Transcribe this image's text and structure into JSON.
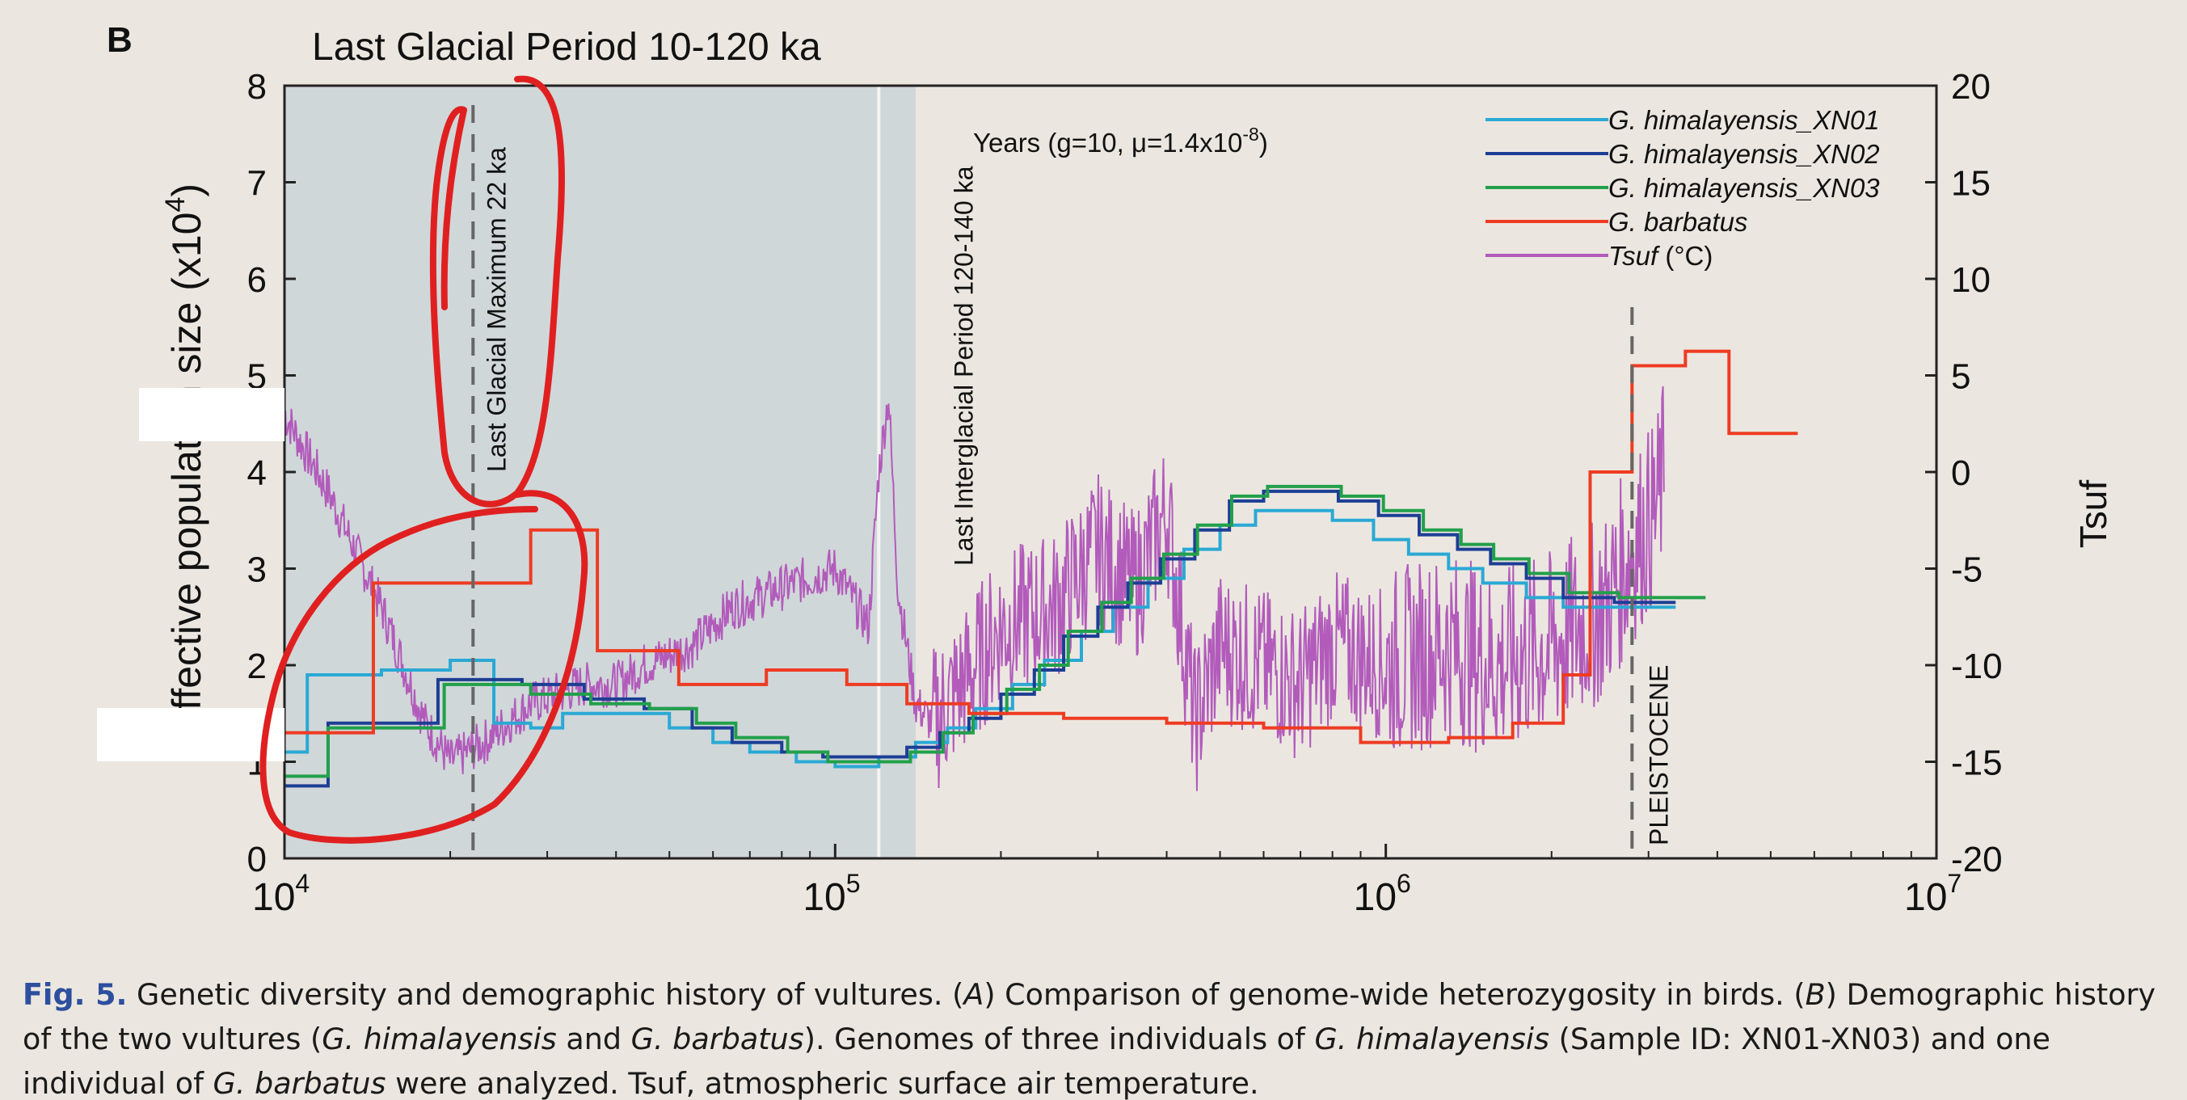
{
  "panel_label": "B",
  "chart_data": {
    "type": "line",
    "title": "Last Glacial Period 10-120 ka",
    "ylabel": "Effective population size (x10",
    "ylabel_exp": "4",
    "ylabel_close": ")",
    "y2label": "Tsuf",
    "xscale": "log",
    "xlim": [
      10000,
      10000000
    ],
    "ylim": [
      0,
      8
    ],
    "y2lim": [
      -20,
      20
    ],
    "x_ticks": [
      {
        "base": "10",
        "exp": "4",
        "value": 10000
      },
      {
        "base": "10",
        "exp": "5",
        "value": 100000
      },
      {
        "base": "10",
        "exp": "6",
        "value": 1000000
      },
      {
        "base": "10",
        "exp": "7",
        "value": 10000000
      }
    ],
    "y_ticks": [
      "0",
      "1",
      "2",
      "3",
      "4",
      "5",
      "6",
      "7",
      "8"
    ],
    "y2_ticks": [
      "-20",
      "-15",
      "-10",
      "-5",
      "0",
      "5",
      "10",
      "15",
      "20"
    ],
    "years_label": "Years (g=10, μ=1.4x10",
    "years_exp": "-8",
    "years_close": ")",
    "shaded_region": [
      10000,
      140000
    ],
    "annotations": [
      {
        "text": "Last Glacial Maximum 22 ka",
        "x": 22000
      },
      {
        "text": "Last Interglacial Period 120-140 ka",
        "x": 120000
      },
      {
        "text": "PLEISTOCENE",
        "x": 2800000
      }
    ],
    "legend": [
      {
        "name": "G. himalayensis_XN01",
        "color": "#2aa9d4"
      },
      {
        "name": "G. himalayensis_XN02",
        "color": "#1c3e94"
      },
      {
        "name": "G. himalayensis_XN03",
        "color": "#21a04a"
      },
      {
        "name": "G. barbatus",
        "color": "#ee3b22"
      },
      {
        "name": "Tsuf",
        "unit": "(°C)",
        "color": "#b25bbb"
      }
    ],
    "series": [
      {
        "name": "G. himalayensis_XN01",
        "color": "#2aa9d4",
        "step": true,
        "x": [
          10000,
          11000,
          15000,
          20000,
          24000,
          28000,
          32000,
          40000,
          50000,
          60000,
          70000,
          85000,
          100000,
          120000,
          140000,
          160000,
          180000,
          210000,
          240000,
          280000,
          320000,
          370000,
          430000,
          500000,
          580000,
          680000,
          800000,
          950000,
          1100000,
          1300000,
          1500000,
          1800000,
          2100000,
          2500000,
          3000000
        ],
        "y": [
          1.1,
          1.9,
          1.95,
          2.05,
          1.4,
          1.35,
          1.5,
          1.5,
          1.35,
          1.2,
          1.1,
          1.0,
          0.95,
          1.05,
          1.2,
          1.35,
          1.55,
          1.8,
          2.05,
          2.35,
          2.6,
          2.9,
          3.2,
          3.45,
          3.6,
          3.6,
          3.5,
          3.3,
          3.15,
          3.0,
          2.85,
          2.7,
          2.6,
          2.6,
          2.6
        ]
      },
      {
        "name": "G. himalayensis_XN02",
        "color": "#1c3e94",
        "step": true,
        "x": [
          10000,
          12000,
          14000,
          19000,
          27000,
          35000,
          45000,
          55000,
          65000,
          80000,
          95000,
          115000,
          135000,
          155000,
          175000,
          200000,
          230000,
          260000,
          300000,
          340000,
          390000,
          450000,
          520000,
          600000,
          700000,
          820000,
          970000,
          1150000,
          1350000,
          1550000,
          1800000,
          2100000,
          2600000,
          3000000
        ],
        "y": [
          0.75,
          1.4,
          1.4,
          1.85,
          1.8,
          1.65,
          1.55,
          1.35,
          1.2,
          1.1,
          1.05,
          1.05,
          1.15,
          1.3,
          1.45,
          1.7,
          1.95,
          2.3,
          2.6,
          2.85,
          3.1,
          3.4,
          3.7,
          3.8,
          3.8,
          3.7,
          3.55,
          3.35,
          3.2,
          3.05,
          2.9,
          2.7,
          2.65,
          2.65
        ]
      },
      {
        "name": "G. himalayensis_XN03",
        "color": "#21a04a",
        "step": true,
        "x": [
          10000,
          12000,
          14500,
          19500,
          28000,
          36000,
          46000,
          56000,
          66000,
          82000,
          97000,
          117000,
          137000,
          157000,
          178000,
          205000,
          235000,
          265000,
          305000,
          345000,
          395000,
          455000,
          525000,
          610000,
          710000,
          830000,
          990000,
          1170000,
          1370000,
          1570000,
          1820000,
          2150000,
          2650000,
          3400000
        ],
        "y": [
          0.85,
          1.35,
          1.35,
          1.8,
          1.7,
          1.6,
          1.55,
          1.4,
          1.25,
          1.1,
          1.0,
          1.0,
          1.1,
          1.3,
          1.5,
          1.75,
          2.0,
          2.35,
          2.65,
          2.9,
          3.15,
          3.45,
          3.75,
          3.85,
          3.85,
          3.75,
          3.6,
          3.4,
          3.25,
          3.1,
          2.95,
          2.75,
          2.7,
          2.7
        ]
      },
      {
        "name": "G. barbatus",
        "color": "#ee3b22",
        "step": true,
        "x": [
          10000,
          14500,
          21000,
          28000,
          37000,
          52000,
          75000,
          105000,
          135000,
          175000,
          260000,
          400000,
          600000,
          900000,
          1300000,
          1700000,
          2100000,
          2350000,
          2800000,
          3500000,
          4200000,
          5000000
        ],
        "y": [
          1.3,
          2.85,
          2.85,
          3.4,
          2.15,
          1.8,
          1.95,
          1.8,
          1.6,
          1.5,
          1.45,
          1.4,
          1.35,
          1.2,
          1.25,
          1.4,
          1.9,
          4.0,
          5.1,
          5.25,
          4.4,
          4.4
        ]
      }
    ],
    "temperature": {
      "name": "Tsuf",
      "unit": "°C",
      "color": "#b25bbb",
      "x_range": [
        10000,
        3200000
      ],
      "knots": [
        [
          10000,
          3
        ],
        [
          12000,
          -1
        ],
        [
          15000,
          -7
        ],
        [
          18000,
          -13
        ],
        [
          20000,
          -15
        ],
        [
          23000,
          -14
        ],
        [
          28000,
          -12
        ],
        [
          35000,
          -11
        ],
        [
          40000,
          -11
        ],
        [
          45000,
          -10
        ],
        [
          55000,
          -9
        ],
        [
          65000,
          -7
        ],
        [
          80000,
          -6
        ],
        [
          100000,
          -5
        ],
        [
          115000,
          -8
        ],
        [
          120000,
          0
        ],
        [
          125000,
          4
        ],
        [
          130000,
          -6
        ],
        [
          140000,
          -12
        ],
        [
          150000,
          -13
        ],
        [
          170000,
          -11
        ],
        [
          200000,
          -8
        ],
        [
          250000,
          -7
        ],
        [
          300000,
          -4
        ],
        [
          350000,
          -6
        ],
        [
          400000,
          -2
        ],
        [
          450000,
          -13
        ],
        [
          500000,
          -9
        ],
        [
          600000,
          -10
        ],
        [
          700000,
          -11
        ],
        [
          800000,
          -9
        ],
        [
          1000000,
          -10
        ],
        [
          1300000,
          -9
        ],
        [
          1600000,
          -10
        ],
        [
          2000000,
          -9
        ],
        [
          2500000,
          -7
        ],
        [
          2800000,
          -4
        ],
        [
          3100000,
          -2
        ],
        [
          3200000,
          0
        ]
      ]
    }
  },
  "caption": {
    "fig_label": "Fig. 5.",
    "text": "Genetic diversity and demographic history of vultures. (",
    "a": "A",
    "text2": ") Comparison of genome-wide heterozygosity in birds. (",
    "b": "B",
    "text3": ") Demographic history of the two vultures (",
    "sp1": "G. himalayensis",
    "text4": " and ",
    "sp2": "G. barbatus",
    "text5": "). Genomes of three individuals of ",
    "sp3": "G. himalayensis",
    "text6": " (Sample ID: XN01-XN03) and one individual of ",
    "sp4": "G. barbatus",
    "text7": " were analyzed. Tsuf, atmospheric surface air temperature."
  }
}
